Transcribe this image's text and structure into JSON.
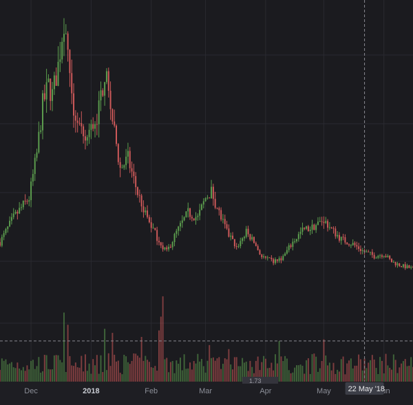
{
  "chart_data": {
    "type": "candlestick",
    "colors": {
      "up": "#5c9e4e",
      "down": "#cf5a5a",
      "background": "#1b1b1f",
      "grid": "#2a2a30",
      "axis_text": "#8c8f98"
    },
    "x_ticks": [
      {
        "label": "Dec",
        "date": "2017-12-01",
        "strong": false
      },
      {
        "label": "2018",
        "date": "2018-01-01",
        "strong": true
      },
      {
        "label": "Feb",
        "date": "2018-02-01",
        "strong": false
      },
      {
        "label": "Mar",
        "date": "2018-03-01",
        "strong": false
      },
      {
        "label": "Apr",
        "date": "2018-04-01",
        "strong": false
      },
      {
        "label": "May",
        "date": "2018-05-01",
        "strong": false
      },
      {
        "label": "Jun",
        "date": "2018-06-01",
        "strong": false
      }
    ],
    "crosshair": {
      "date": "2018-05-22",
      "label": "22 May '18",
      "volume_level": 5000
    },
    "x_range": [
      "2017-11-15",
      "2018-06-16"
    ],
    "price_range": [
      3,
      30
    ],
    "volume_range": [
      0,
      11000
    ],
    "price_anchors": [
      [
        "2017-11-15",
        6.0
      ],
      [
        "2017-11-22",
        8.5
      ],
      [
        "2017-11-30",
        10.5
      ],
      [
        "2017-12-04",
        15.0
      ],
      [
        "2017-12-07",
        20.0
      ],
      [
        "2017-12-10",
        22.0
      ],
      [
        "2017-12-12",
        21.0
      ],
      [
        "2017-12-15",
        24.0
      ],
      [
        "2017-12-18",
        28.8
      ],
      [
        "2017-12-22",
        20.0
      ],
      [
        "2017-12-25",
        18.5
      ],
      [
        "2017-12-28",
        16.0
      ],
      [
        "2018-01-01",
        17.5
      ],
      [
        "2018-01-05",
        19.5
      ],
      [
        "2018-01-08",
        23.5
      ],
      [
        "2018-01-12",
        18.5
      ],
      [
        "2018-01-16",
        13.5
      ],
      [
        "2018-01-20",
        14.5
      ],
      [
        "2018-01-25",
        11.0
      ],
      [
        "2018-01-30",
        8.5
      ],
      [
        "2018-02-04",
        6.5
      ],
      [
        "2018-02-09",
        5.0
      ],
      [
        "2018-02-14",
        7.0
      ],
      [
        "2018-02-20",
        9.0
      ],
      [
        "2018-02-25",
        8.5
      ],
      [
        "2018-03-01",
        10.5
      ],
      [
        "2018-03-04",
        11.2
      ],
      [
        "2018-03-08",
        9.0
      ],
      [
        "2018-03-12",
        7.0
      ],
      [
        "2018-03-17",
        5.5
      ],
      [
        "2018-03-22",
        7.0
      ],
      [
        "2018-03-26",
        6.0
      ],
      [
        "2018-03-30",
        4.5
      ],
      [
        "2018-04-05",
        4.0
      ],
      [
        "2018-04-10",
        4.5
      ],
      [
        "2018-04-15",
        6.0
      ],
      [
        "2018-04-20",
        7.2
      ],
      [
        "2018-04-25",
        7.5
      ],
      [
        "2018-05-01",
        8.3
      ],
      [
        "2018-05-05",
        7.3
      ],
      [
        "2018-05-10",
        6.3
      ],
      [
        "2018-05-16",
        5.8
      ],
      [
        "2018-05-22",
        5.0
      ],
      [
        "2018-05-27",
        4.6
      ],
      [
        "2018-06-01",
        4.8
      ],
      [
        "2018-06-05",
        4.0
      ],
      [
        "2018-06-10",
        3.6
      ],
      [
        "2018-06-16",
        3.3
      ]
    ],
    "volume_spikes": [
      [
        "2017-12-18",
        8500
      ],
      [
        "2017-12-20",
        7000
      ],
      [
        "2018-01-08",
        6500
      ],
      [
        "2018-01-12",
        6000
      ],
      [
        "2018-01-27",
        5500
      ],
      [
        "2018-02-05",
        6300
      ],
      [
        "2018-02-06",
        8000
      ],
      [
        "2018-02-07",
        10500
      ],
      [
        "2018-03-03",
        4500
      ],
      [
        "2018-03-13",
        4000
      ],
      [
        "2018-04-08",
        5000
      ],
      [
        "2018-05-01",
        5200
      ]
    ],
    "sliding_label": "1.73"
  }
}
